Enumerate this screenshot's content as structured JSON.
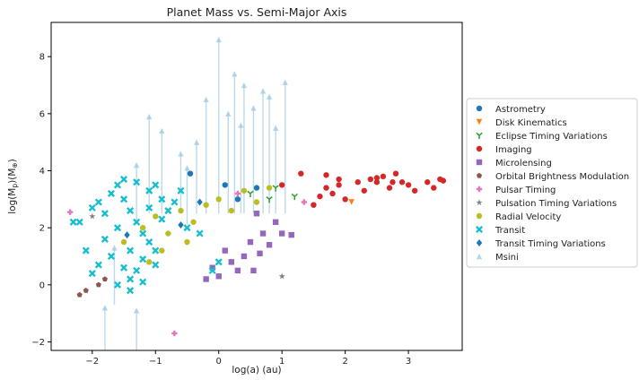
{
  "chart_data": {
    "type": "scatter",
    "title": "Planet Mass vs. Semi-Major Axis",
    "xlabel": "log(a) (au)",
    "ylabel": "log(M_p)(M_⊕)",
    "ylabel_main": "log(M",
    "ylabel_sub1": "p",
    "ylabel_mid": ")(M",
    "ylabel_sub2": "⊕",
    "ylabel_end": ")",
    "xlim": [
      -2.65,
      3.85
    ],
    "ylim": [
      -2.3,
      9.2
    ],
    "xticks": [
      "−2",
      "−1",
      "0",
      "1",
      "2",
      "3"
    ],
    "xtick_values": [
      -2,
      -1,
      0,
      1,
      2,
      3
    ],
    "yticks": [
      "−2",
      "0",
      "2",
      "4",
      "6",
      "8"
    ],
    "ytick_values": [
      -2,
      0,
      2,
      4,
      6,
      8
    ],
    "legend_position": "outside-right",
    "series": [
      {
        "name": "Astrometry",
        "color": "#1f77b4",
        "marker": "circle",
        "points": [
          [
            -0.45,
            3.9
          ],
          [
            0.1,
            3.5
          ],
          [
            0.3,
            3.0
          ],
          [
            0.6,
            3.4
          ]
        ]
      },
      {
        "name": "Disk Kinematics",
        "color": "#ff7f0e",
        "marker": "triangle-down",
        "points": [
          [
            2.1,
            2.9
          ]
        ]
      },
      {
        "name": "Eclipse Timing Variations",
        "color": "#2ca02c",
        "marker": "tri-down",
        "points": [
          [
            0.5,
            3.2
          ],
          [
            0.8,
            3.0
          ],
          [
            0.9,
            3.4
          ],
          [
            1.2,
            3.1
          ]
        ]
      },
      {
        "name": "Imaging",
        "color": "#d62728",
        "marker": "circle",
        "points": [
          [
            1.3,
            3.9
          ],
          [
            1.5,
            2.8
          ],
          [
            1.6,
            3.1
          ],
          [
            1.7,
            3.4
          ],
          [
            1.8,
            3.2
          ],
          [
            1.9,
            3.5
          ],
          [
            2.0,
            3.0
          ],
          [
            2.2,
            3.6
          ],
          [
            2.3,
            3.3
          ],
          [
            2.4,
            3.7
          ],
          [
            2.5,
            3.6
          ],
          [
            2.6,
            3.8
          ],
          [
            2.7,
            3.4
          ],
          [
            2.8,
            3.9
          ],
          [
            2.9,
            3.6
          ],
          [
            3.0,
            3.5
          ],
          [
            3.1,
            3.3
          ],
          [
            3.3,
            3.6
          ],
          [
            3.4,
            3.4
          ],
          [
            3.5,
            3.7
          ],
          [
            3.55,
            3.65
          ],
          [
            1.7,
            3.85
          ],
          [
            1.9,
            3.7
          ],
          [
            2.5,
            3.75
          ],
          [
            2.75,
            3.6
          ],
          [
            1.0,
            3.5
          ]
        ]
      },
      {
        "name": "Microlensing",
        "color": "#9467bd",
        "marker": "square",
        "points": [
          [
            0.5,
            1.5
          ],
          [
            0.7,
            1.8
          ],
          [
            0.9,
            2.2
          ],
          [
            1.0,
            1.8
          ],
          [
            0.6,
            2.5
          ],
          [
            0.2,
            0.8
          ],
          [
            0.3,
            0.5
          ],
          [
            0.4,
            1.0
          ],
          [
            0.8,
            1.4
          ],
          [
            1.15,
            1.75
          ],
          [
            0.55,
            0.5
          ],
          [
            0.0,
            0.3
          ],
          [
            -0.2,
            0.2
          ],
          [
            0.1,
            1.2
          ],
          [
            0.65,
            1.1
          ],
          [
            -0.1,
            0.6
          ]
        ]
      },
      {
        "name": "Orbital Brightness Modulation",
        "color": "#8c564b",
        "marker": "pentagon",
        "points": [
          [
            -2.2,
            -0.35
          ],
          [
            -2.1,
            -0.2
          ],
          [
            -1.9,
            0.0
          ],
          [
            -1.8,
            0.2
          ]
        ]
      },
      {
        "name": "Pulsar Timing",
        "color": "#e377c2",
        "marker": "plus",
        "points": [
          [
            -2.35,
            2.55
          ],
          [
            -0.7,
            -1.7
          ],
          [
            1.35,
            2.9
          ],
          [
            0.3,
            3.2
          ]
        ]
      },
      {
        "name": "Pulsation Timing Variations",
        "color": "#7f7f7f",
        "marker": "star",
        "points": [
          [
            -2.0,
            2.4
          ],
          [
            1.0,
            0.3
          ]
        ]
      },
      {
        "name": "Radial Velocity",
        "color": "#bcbd22",
        "marker": "circle",
        "points": [
          [
            -1.5,
            1.5
          ],
          [
            -1.2,
            2.0
          ],
          [
            -1.0,
            2.4
          ],
          [
            -0.8,
            1.8
          ],
          [
            -0.6,
            2.6
          ],
          [
            -0.4,
            2.2
          ],
          [
            -0.2,
            2.8
          ],
          [
            0.0,
            3.0
          ],
          [
            0.2,
            2.6
          ],
          [
            0.4,
            3.3
          ],
          [
            0.6,
            2.9
          ],
          [
            0.8,
            3.4
          ],
          [
            -0.9,
            1.2
          ],
          [
            -0.5,
            1.5
          ],
          [
            -1.1,
            0.8
          ]
        ]
      },
      {
        "name": "Transit",
        "color": "#17becf",
        "marker": "x",
        "points": [
          [
            -2.2,
            2.2
          ],
          [
            -2.0,
            2.7
          ],
          [
            -1.9,
            2.9
          ],
          [
            -1.7,
            3.2
          ],
          [
            -1.6,
            3.5
          ],
          [
            -1.5,
            3.0
          ],
          [
            -1.4,
            2.6
          ],
          [
            -1.3,
            2.2
          ],
          [
            -1.2,
            1.8
          ],
          [
            -1.1,
            1.5
          ],
          [
            -1.0,
            1.2
          ],
          [
            -1.6,
            2.0
          ],
          [
            -1.8,
            1.6
          ],
          [
            -2.0,
            0.4
          ],
          [
            -1.9,
            0.7
          ],
          [
            -1.7,
            1.0
          ],
          [
            -1.5,
            0.6
          ],
          [
            -1.4,
            0.2
          ],
          [
            -1.3,
            0.5
          ],
          [
            -1.2,
            0.9
          ],
          [
            -1.0,
            0.7
          ],
          [
            -0.9,
            2.3
          ],
          [
            -0.8,
            2.6
          ],
          [
            -0.7,
            2.9
          ],
          [
            -0.6,
            3.3
          ],
          [
            -1.3,
            3.6
          ],
          [
            -1.1,
            3.3
          ],
          [
            -0.9,
            3.0
          ],
          [
            -1.5,
            3.7
          ],
          [
            -1.8,
            2.5
          ],
          [
            -2.3,
            2.2
          ],
          [
            -2.1,
            1.2
          ],
          [
            -1.6,
            0.0
          ],
          [
            -1.4,
            -0.2
          ],
          [
            -1.2,
            0.1
          ],
          [
            -0.5,
            2.0
          ],
          [
            -0.3,
            1.8
          ],
          [
            -0.1,
            0.5
          ],
          [
            0.0,
            0.8
          ],
          [
            -1.0,
            3.5
          ],
          [
            -1.4,
            1.2
          ],
          [
            -1.1,
            2.7
          ]
        ]
      },
      {
        "name": "Transit Timing Variations",
        "color": "#1f77b4",
        "marker": "diamond",
        "points": [
          [
            -1.45,
            1.75
          ],
          [
            -0.6,
            2.1
          ],
          [
            -0.3,
            2.9
          ]
        ]
      },
      {
        "name": "Msini",
        "color": "#9ecae1",
        "marker": "triangle-up",
        "points": [
          [
            0.0,
            8.6
          ],
          [
            -0.2,
            6.5
          ],
          [
            0.4,
            7.0
          ],
          [
            0.7,
            6.8
          ],
          [
            1.05,
            7.1
          ],
          [
            -1.1,
            5.9
          ],
          [
            -0.9,
            5.4
          ],
          [
            0.15,
            6.0
          ],
          [
            0.35,
            5.6
          ],
          [
            0.55,
            6.2
          ],
          [
            0.8,
            6.6
          ],
          [
            -0.6,
            4.6
          ],
          [
            -1.3,
            4.2
          ],
          [
            -1.65,
            1.3
          ],
          [
            -1.8,
            -0.8
          ],
          [
            -1.3,
            -0.9
          ],
          [
            -0.5,
            4.1
          ],
          [
            0.25,
            7.4
          ],
          [
            0.9,
            5.5
          ],
          [
            -0.35,
            5.0
          ]
        ]
      }
    ]
  }
}
